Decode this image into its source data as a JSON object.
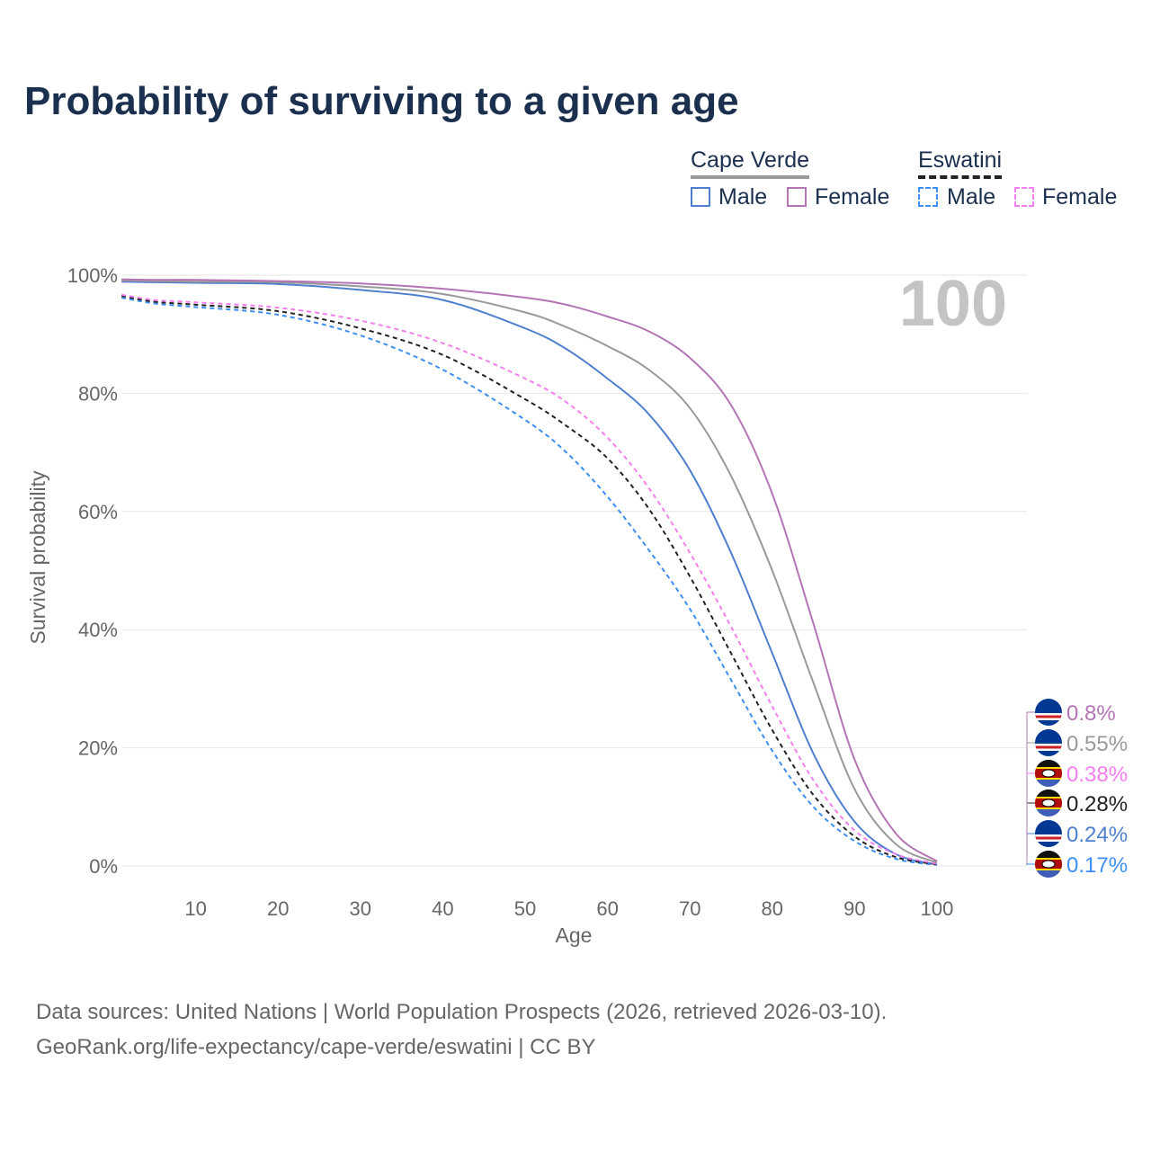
{
  "title": "Probability of surviving to a given age",
  "legend": {
    "groups": [
      {
        "name": "Cape Verde",
        "color": "#999999",
        "dashed": false,
        "items": [
          {
            "label": "Male",
            "color": "#4f7fcf"
          },
          {
            "label": "Female",
            "color": "#b574b5"
          }
        ]
      },
      {
        "name": "Eswatini",
        "color": "#222222",
        "dashed": true,
        "items": [
          {
            "label": "Male",
            "color": "#3d8ef5"
          },
          {
            "label": "Female",
            "color": "#f57ff0"
          }
        ]
      }
    ]
  },
  "chart_data": {
    "type": "line",
    "title": "Probability of surviving to a given age",
    "xlabel": "Age",
    "ylabel": "Survival probability",
    "xlim": [
      0,
      100
    ],
    "ylim": [
      0,
      100
    ],
    "xticks": [
      10,
      20,
      30,
      40,
      50,
      60,
      70,
      80,
      90,
      100
    ],
    "yticks": [
      "0%",
      "20%",
      "40%",
      "60%",
      "80%",
      "100%"
    ],
    "ytick_values": [
      0,
      20,
      40,
      60,
      80,
      100
    ],
    "grid": true,
    "age_indicator": "100",
    "x": [
      1,
      5,
      10,
      20,
      30,
      40,
      50,
      55,
      60,
      65,
      70,
      75,
      80,
      85,
      90,
      95,
      100
    ],
    "series": [
      {
        "name": "Eswatini Male",
        "color": "#3d8ef5",
        "dashed": true,
        "end_label": "0.17%",
        "flag": "eswatini",
        "values": [
          96.2,
          95.2,
          94.6,
          93.3,
          89.8,
          84,
          75.5,
          70,
          62.5,
          53.5,
          43.5,
          31.5,
          19.5,
          10,
          4.2,
          1.2,
          0.17
        ]
      },
      {
        "name": "Cape Verde Male",
        "color": "#4f7fcf",
        "dashed": false,
        "end_label": "0.24%",
        "flag": "cape-verde",
        "values": [
          98.9,
          98.8,
          98.7,
          98.5,
          97.5,
          95.8,
          91,
          87.5,
          82.5,
          76.5,
          67,
          53,
          36,
          19,
          7.5,
          2,
          0.24
        ]
      },
      {
        "name": "Eswatini",
        "color": "#222222",
        "dashed": true,
        "end_label": "0.28%",
        "flag": "eswatini",
        "values": [
          96.5,
          95.5,
          95,
          93.9,
          91,
          86.5,
          79,
          74.5,
          69,
          60.5,
          49,
          36,
          23,
          12,
          5,
          1.5,
          0.28
        ]
      },
      {
        "name": "Eswatini Female",
        "color": "#f57ff0",
        "dashed": true,
        "end_label": "0.38%",
        "flag": "eswatini",
        "values": [
          96.7,
          95.8,
          95.4,
          94.5,
          92.3,
          88.5,
          82.5,
          78.5,
          72.5,
          64,
          53,
          40.5,
          27,
          14.5,
          6,
          2,
          0.38
        ]
      },
      {
        "name": "Cape Verde",
        "color": "#999999",
        "dashed": false,
        "end_label": "0.55%",
        "flag": "cape-verde",
        "values": [
          99.1,
          99,
          98.9,
          98.8,
          98.1,
          96.8,
          93.7,
          91.2,
          88,
          84,
          77.5,
          66,
          50,
          31,
          13,
          3.7,
          0.55
        ]
      },
      {
        "name": "Cape Verde Female",
        "color": "#b574b5",
        "dashed": false,
        "end_label": "0.8%",
        "flag": "cape-verde",
        "values": [
          99.3,
          99.2,
          99.2,
          99,
          98.6,
          97.7,
          96.2,
          95,
          93,
          90.5,
          86,
          78,
          63,
          41,
          18,
          5.5,
          0.8
        ]
      }
    ]
  },
  "source": {
    "line1": "Data sources: United Nations | World Population Prospects (2026, retrieved 2026-03-10).",
    "line2": "GeoRank.org/life-expectancy/cape-verde/eswatini | CC BY"
  }
}
